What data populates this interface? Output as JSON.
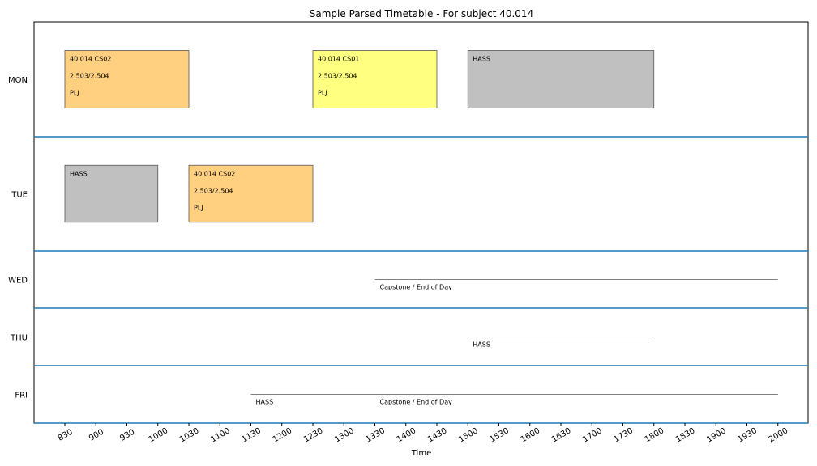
{
  "chart_data": {
    "type": "timeline",
    "title": "Sample Parsed Timetable - For subject 40.014",
    "xlabel": "Time",
    "days": [
      "MON",
      "TUE",
      "WED",
      "THU",
      "FRI"
    ],
    "x_ticks": [
      "830",
      "900",
      "930",
      "1000",
      "1030",
      "1100",
      "1130",
      "1200",
      "1230",
      "1300",
      "1330",
      "1400",
      "1430",
      "1500",
      "1530",
      "1600",
      "1630",
      "1700",
      "1730",
      "1800",
      "1830",
      "1900",
      "1930",
      "2000"
    ],
    "colors": {
      "lab": "#FFD080",
      "lecture": "#FFFF80",
      "hass": "#C0C0C0",
      "divider": "#1F77B4",
      "line": "#808080"
    },
    "events": [
      {
        "day": "MON",
        "start": "830",
        "end": "1030",
        "kind": "lab",
        "lines": [
          "40.014 CS02",
          "2.503/2.504",
          "PLJ"
        ]
      },
      {
        "day": "MON",
        "start": "1230",
        "end": "1430",
        "kind": "lecture",
        "lines": [
          "40.014 CS01",
          "2.503/2.504",
          "PLJ"
        ]
      },
      {
        "day": "MON",
        "start": "1500",
        "end": "1800",
        "kind": "hass",
        "lines": [
          "HASS"
        ]
      },
      {
        "day": "TUE",
        "start": "830",
        "end": "1000",
        "kind": "hass",
        "lines": [
          "HASS"
        ]
      },
      {
        "day": "TUE",
        "start": "1030",
        "end": "1230",
        "kind": "lab",
        "lines": [
          "40.014 CS02",
          "2.503/2.504",
          "PLJ"
        ]
      }
    ],
    "spans": [
      {
        "day": "WED",
        "start": "1330",
        "end": "2000",
        "label": "Capstone / End of Day"
      },
      {
        "day": "THU",
        "start": "1500",
        "end": "1800",
        "label": "HASS"
      },
      {
        "day": "FRI",
        "start": "1130",
        "end": "2000",
        "label": "HASS"
      },
      {
        "day": "FRI",
        "start": "1330",
        "end": "2000",
        "label": "Capstone / End of Day"
      }
    ]
  }
}
